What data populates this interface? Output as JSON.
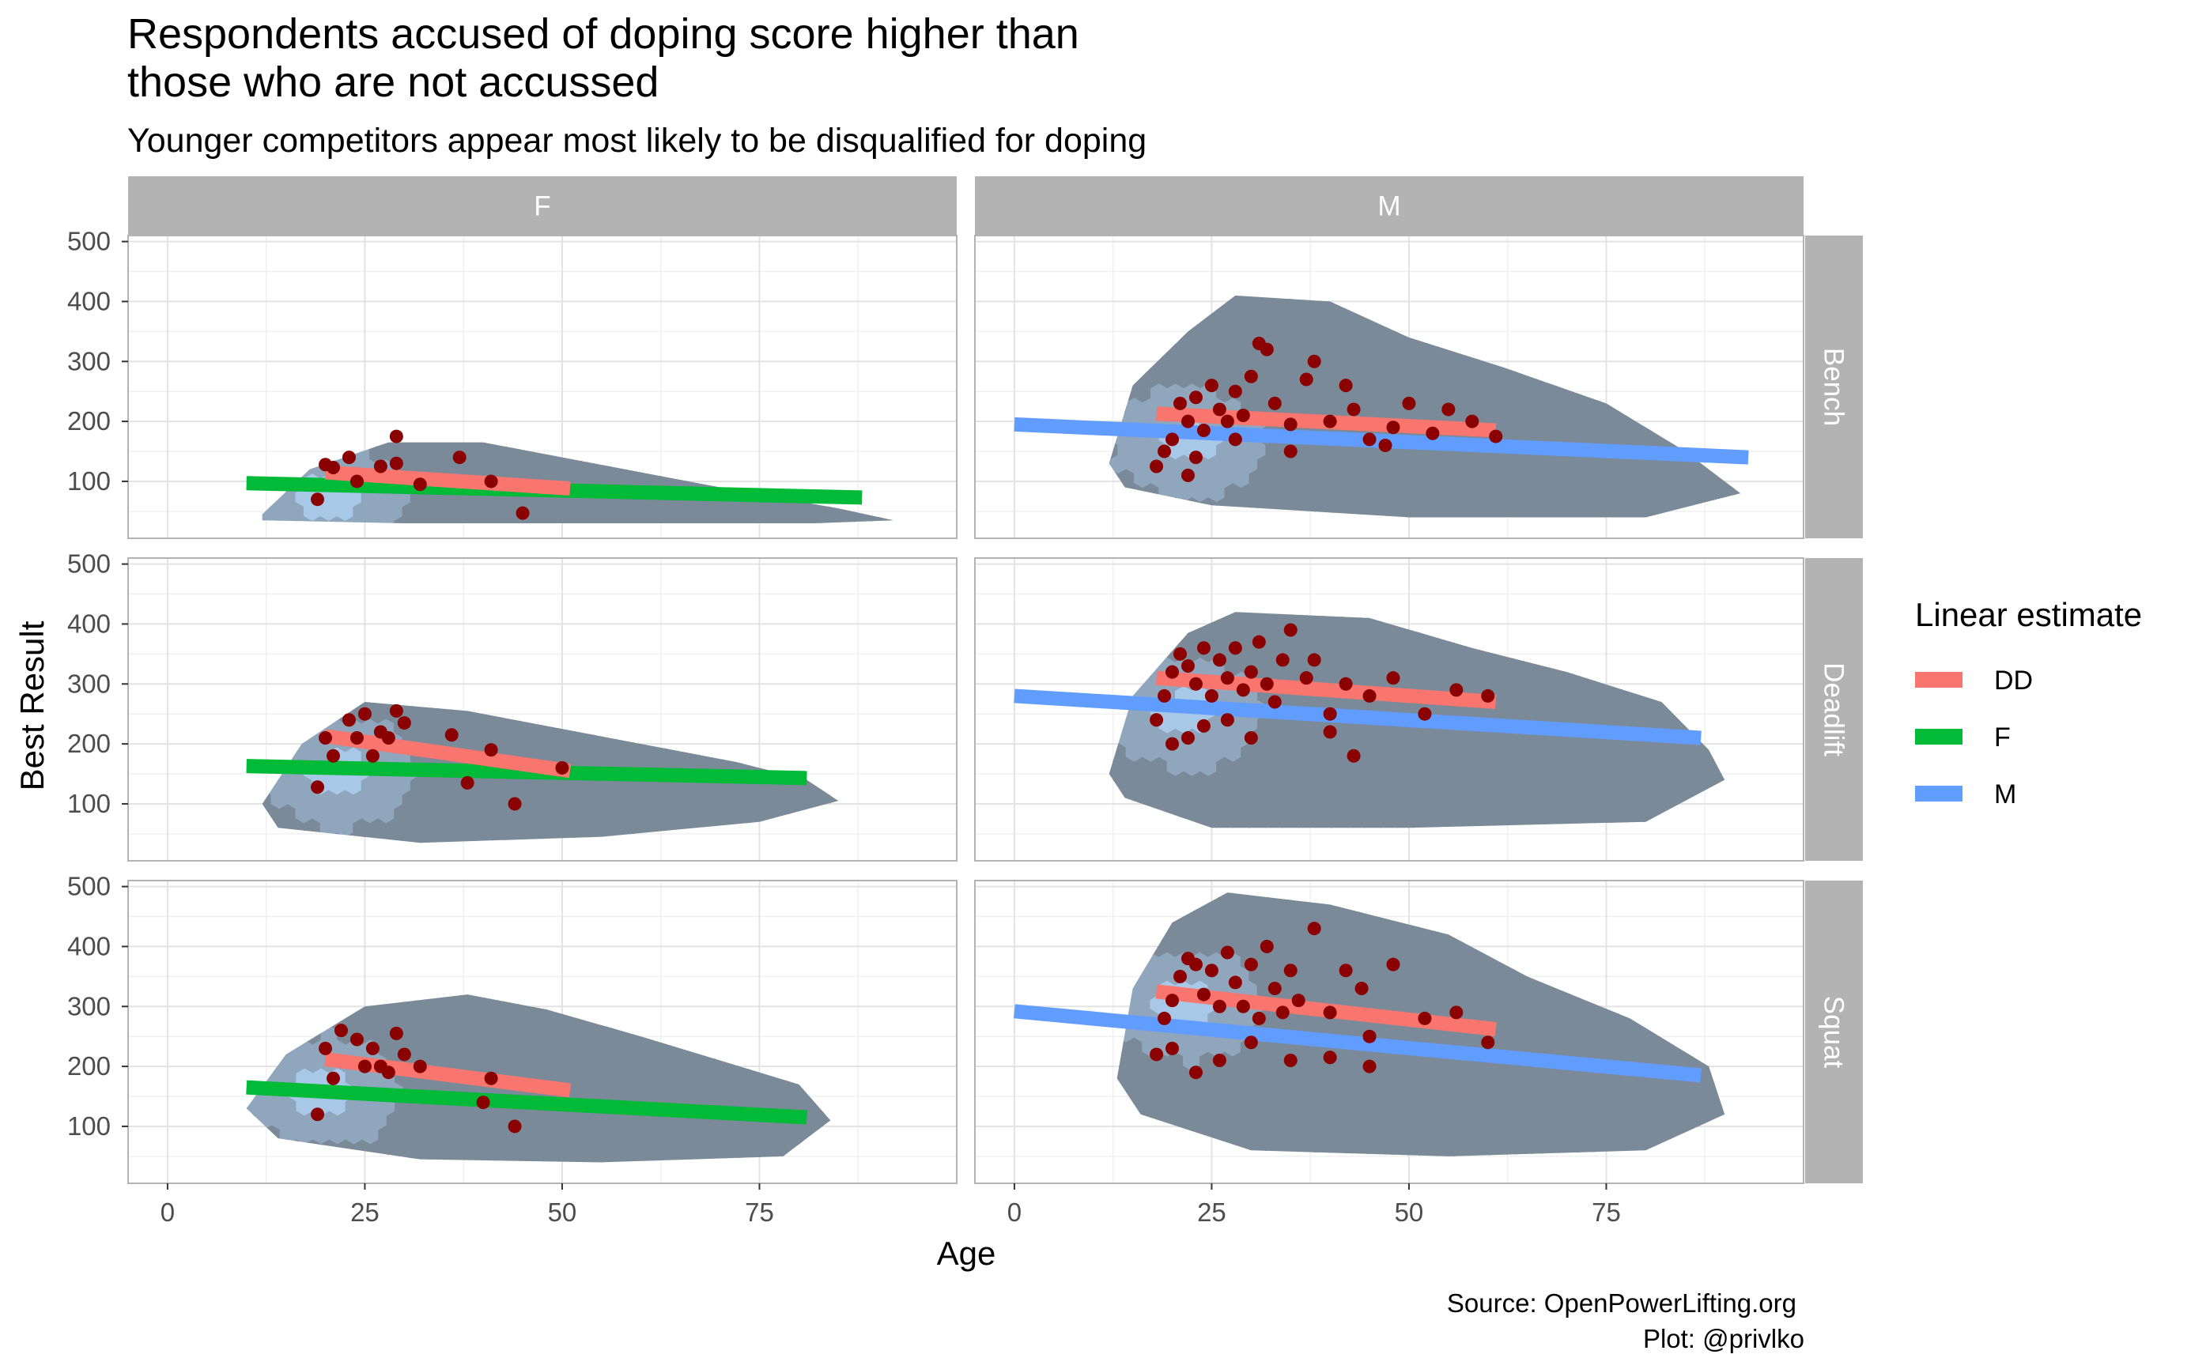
{
  "chart_data": {
    "type": "scatter",
    "title_lines": [
      "Respondents accused of doping score higher than",
      "those who are not accussed"
    ],
    "subtitle": "Younger competitors appear most likely to be disqualified for doping",
    "xlabel": "Age",
    "ylabel": "Best Result",
    "xlim": [
      -5,
      100
    ],
    "ylim": [
      5,
      510
    ],
    "x_ticks": [
      0,
      25,
      50,
      75
    ],
    "y_ticks": [
      100,
      200,
      300,
      400,
      500
    ],
    "grid": true,
    "facet_columns": [
      "F",
      "M"
    ],
    "facet_rows": [
      "Bench",
      "Deadlift",
      "Squat"
    ],
    "legend": {
      "title": "Linear estimate",
      "position": "right",
      "items": [
        {
          "label": "DD",
          "color": "#F8766D"
        },
        {
          "label": "F",
          "color": "#00BA38"
        },
        {
          "label": "M",
          "color": "#619CFF"
        }
      ]
    },
    "colors": {
      "hexbin_fill": "#7b8a99",
      "hexbin_dense": "#a8c8e8",
      "doping_points": "#8b0000",
      "strip_bg": "#b3b3b3"
    },
    "panels": [
      {
        "sex": "F",
        "lift": "Bench",
        "hex_extent": [
          [
            12,
            45
          ],
          [
            18,
            120
          ],
          [
            28,
            165
          ],
          [
            40,
            165
          ],
          [
            52,
            135
          ],
          [
            62,
            110
          ],
          [
            72,
            85
          ],
          [
            85,
            55
          ],
          [
            92,
            35
          ],
          [
            82,
            30
          ],
          [
            55,
            30
          ],
          [
            30,
            30
          ],
          [
            12,
            35
          ]
        ],
        "dense_center": [
          20,
          75
        ],
        "trend_sex": {
          "name": "F",
          "x": [
            10,
            88
          ],
          "y": [
            97,
            73
          ]
        },
        "trend_dd": {
          "name": "DD",
          "x": [
            20,
            51
          ],
          "y": [
            115,
            88
          ]
        },
        "dd_points": [
          [
            19,
            70
          ],
          [
            20,
            128
          ],
          [
            21,
            123
          ],
          [
            23,
            140
          ],
          [
            27,
            125
          ],
          [
            29,
            175
          ],
          [
            29,
            130
          ],
          [
            37,
            140
          ],
          [
            41,
            100
          ],
          [
            45,
            47
          ],
          [
            24,
            100
          ],
          [
            32,
            95
          ]
        ]
      },
      {
        "sex": "M",
        "lift": "Bench",
        "hex_extent": [
          [
            12,
            130
          ],
          [
            15,
            260
          ],
          [
            22,
            350
          ],
          [
            28,
            410
          ],
          [
            40,
            400
          ],
          [
            50,
            340
          ],
          [
            62,
            290
          ],
          [
            75,
            230
          ],
          [
            85,
            150
          ],
          [
            92,
            80
          ],
          [
            80,
            40
          ],
          [
            50,
            40
          ],
          [
            25,
            60
          ],
          [
            14,
            90
          ]
        ],
        "dense_center": [
          22,
          165
        ],
        "trend_sex": {
          "name": "M",
          "x": [
            0,
            93
          ],
          "y": [
            195,
            140
          ]
        },
        "trend_dd": {
          "name": "DD",
          "x": [
            18,
            61
          ],
          "y": [
            213,
            185
          ]
        },
        "dd_points": [
          [
            18,
            125
          ],
          [
            19,
            150
          ],
          [
            20,
            170
          ],
          [
            21,
            230
          ],
          [
            22,
            200
          ],
          [
            23,
            240
          ],
          [
            24,
            185
          ],
          [
            25,
            260
          ],
          [
            26,
            220
          ],
          [
            27,
            200
          ],
          [
            28,
            250
          ],
          [
            29,
            210
          ],
          [
            30,
            275
          ],
          [
            31,
            330
          ],
          [
            32,
            320
          ],
          [
            33,
            230
          ],
          [
            35,
            195
          ],
          [
            37,
            270
          ],
          [
            38,
            300
          ],
          [
            40,
            200
          ],
          [
            42,
            260
          ],
          [
            43,
            220
          ],
          [
            45,
            170
          ],
          [
            48,
            190
          ],
          [
            50,
            230
          ],
          [
            53,
            180
          ],
          [
            55,
            220
          ],
          [
            58,
            200
          ],
          [
            61,
            175
          ],
          [
            22,
            110
          ],
          [
            23,
            140
          ],
          [
            28,
            170
          ],
          [
            35,
            150
          ],
          [
            47,
            160
          ]
        ]
      },
      {
        "sex": "F",
        "lift": "Deadlift",
        "hex_extent": [
          [
            12,
            100
          ],
          [
            17,
            200
          ],
          [
            25,
            270
          ],
          [
            38,
            255
          ],
          [
            50,
            225
          ],
          [
            62,
            195
          ],
          [
            72,
            170
          ],
          [
            81,
            140
          ],
          [
            85,
            105
          ],
          [
            75,
            70
          ],
          [
            55,
            45
          ],
          [
            32,
            35
          ],
          [
            14,
            60
          ]
        ],
        "dense_center": [
          22,
          150
        ],
        "trend_sex": {
          "name": "F",
          "x": [
            10,
            81
          ],
          "y": [
            163,
            143
          ]
        },
        "trend_dd": {
          "name": "DD",
          "x": [
            20,
            51
          ],
          "y": [
            213,
            155
          ]
        },
        "dd_points": [
          [
            19,
            128
          ],
          [
            20,
            210
          ],
          [
            21,
            180
          ],
          [
            23,
            240
          ],
          [
            24,
            210
          ],
          [
            25,
            250
          ],
          [
            26,
            180
          ],
          [
            27,
            220
          ],
          [
            28,
            210
          ],
          [
            29,
            255
          ],
          [
            30,
            235
          ],
          [
            36,
            215
          ],
          [
            38,
            135
          ],
          [
            41,
            190
          ],
          [
            44,
            100
          ],
          [
            50,
            160
          ]
        ]
      },
      {
        "sex": "M",
        "lift": "Deadlift",
        "hex_extent": [
          [
            12,
            150
          ],
          [
            15,
            280
          ],
          [
            22,
            385
          ],
          [
            28,
            420
          ],
          [
            45,
            410
          ],
          [
            58,
            360
          ],
          [
            70,
            320
          ],
          [
            82,
            270
          ],
          [
            88,
            190
          ],
          [
            90,
            140
          ],
          [
            80,
            70
          ],
          [
            50,
            60
          ],
          [
            25,
            60
          ],
          [
            14,
            110
          ]
        ],
        "dense_center": [
          22,
          250
        ],
        "trend_sex": {
          "name": "M",
          "x": [
            0,
            87
          ],
          "y": [
            280,
            210
          ]
        },
        "trend_dd": {
          "name": "DD",
          "x": [
            18,
            61
          ],
          "y": [
            310,
            270
          ]
        },
        "dd_points": [
          [
            18,
            240
          ],
          [
            19,
            280
          ],
          [
            20,
            320
          ],
          [
            21,
            350
          ],
          [
            22,
            330
          ],
          [
            23,
            300
          ],
          [
            24,
            360
          ],
          [
            25,
            280
          ],
          [
            26,
            340
          ],
          [
            27,
            310
          ],
          [
            28,
            360
          ],
          [
            29,
            290
          ],
          [
            30,
            320
          ],
          [
            31,
            370
          ],
          [
            32,
            300
          ],
          [
            33,
            270
          ],
          [
            34,
            340
          ],
          [
            35,
            390
          ],
          [
            37,
            310
          ],
          [
            38,
            340
          ],
          [
            40,
            250
          ],
          [
            42,
            300
          ],
          [
            45,
            280
          ],
          [
            48,
            310
          ],
          [
            52,
            250
          ],
          [
            56,
            290
          ],
          [
            60,
            280
          ],
          [
            20,
            200
          ],
          [
            22,
            210
          ],
          [
            24,
            230
          ],
          [
            27,
            240
          ],
          [
            30,
            210
          ],
          [
            40,
            220
          ],
          [
            43,
            180
          ]
        ]
      },
      {
        "sex": "F",
        "lift": "Squat",
        "hex_extent": [
          [
            10,
            130
          ],
          [
            15,
            220
          ],
          [
            25,
            300
          ],
          [
            38,
            320
          ],
          [
            48,
            295
          ],
          [
            60,
            250
          ],
          [
            70,
            210
          ],
          [
            80,
            170
          ],
          [
            84,
            110
          ],
          [
            78,
            50
          ],
          [
            55,
            40
          ],
          [
            32,
            45
          ],
          [
            14,
            80
          ]
        ],
        "dense_center": [
          20,
          160
        ],
        "trend_sex": {
          "name": "F",
          "x": [
            10,
            81
          ],
          "y": [
            165,
            115
          ]
        },
        "trend_dd": {
          "name": "DD",
          "x": [
            20,
            51
          ],
          "y": [
            212,
            160
          ]
        },
        "dd_points": [
          [
            19,
            120
          ],
          [
            20,
            230
          ],
          [
            21,
            180
          ],
          [
            22,
            260
          ],
          [
            24,
            245
          ],
          [
            25,
            200
          ],
          [
            26,
            230
          ],
          [
            27,
            200
          ],
          [
            28,
            190
          ],
          [
            29,
            255
          ],
          [
            30,
            220
          ],
          [
            32,
            200
          ],
          [
            40,
            140
          ],
          [
            41,
            180
          ],
          [
            44,
            100
          ]
        ]
      },
      {
        "sex": "M",
        "lift": "Squat",
        "hex_extent": [
          [
            13,
            180
          ],
          [
            15,
            330
          ],
          [
            20,
            440
          ],
          [
            27,
            490
          ],
          [
            40,
            470
          ],
          [
            55,
            420
          ],
          [
            65,
            350
          ],
          [
            78,
            280
          ],
          [
            88,
            200
          ],
          [
            90,
            120
          ],
          [
            80,
            60
          ],
          [
            55,
            50
          ],
          [
            30,
            60
          ],
          [
            16,
            120
          ]
        ],
        "dense_center": [
          22,
          300
        ],
        "trend_sex": {
          "name": "M",
          "x": [
            0,
            87
          ],
          "y": [
            292,
            185
          ]
        },
        "trend_dd": {
          "name": "DD",
          "x": [
            18,
            61
          ],
          "y": [
            325,
            262
          ]
        },
        "dd_points": [
          [
            18,
            220
          ],
          [
            19,
            280
          ],
          [
            20,
            310
          ],
          [
            21,
            350
          ],
          [
            22,
            380
          ],
          [
            23,
            370
          ],
          [
            24,
            320
          ],
          [
            25,
            360
          ],
          [
            26,
            300
          ],
          [
            27,
            390
          ],
          [
            28,
            340
          ],
          [
            29,
            300
          ],
          [
            30,
            370
          ],
          [
            31,
            280
          ],
          [
            32,
            400
          ],
          [
            33,
            330
          ],
          [
            34,
            290
          ],
          [
            35,
            360
          ],
          [
            36,
            310
          ],
          [
            38,
            430
          ],
          [
            40,
            290
          ],
          [
            42,
            360
          ],
          [
            44,
            330
          ],
          [
            45,
            250
          ],
          [
            48,
            370
          ],
          [
            52,
            280
          ],
          [
            56,
            290
          ],
          [
            60,
            240
          ],
          [
            20,
            230
          ],
          [
            23,
            190
          ],
          [
            26,
            210
          ],
          [
            30,
            240
          ],
          [
            35,
            210
          ],
          [
            40,
            215
          ],
          [
            45,
            200
          ]
        ]
      }
    ]
  },
  "caption_lines": [
    "Source: OpenPowerLifting.org",
    "Plot: @privlko"
  ]
}
